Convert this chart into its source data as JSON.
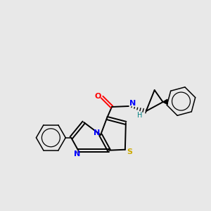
{
  "background_color": "#e8e8e8",
  "atom_colors": {
    "N": "#0000ff",
    "O": "#ff0000",
    "S": "#ccaa00",
    "H": "#008080"
  },
  "bond_color": "#000000",
  "figsize": [
    3.0,
    3.0
  ],
  "dpi": 100,
  "lw": 1.4,
  "lw_thin": 1.1
}
